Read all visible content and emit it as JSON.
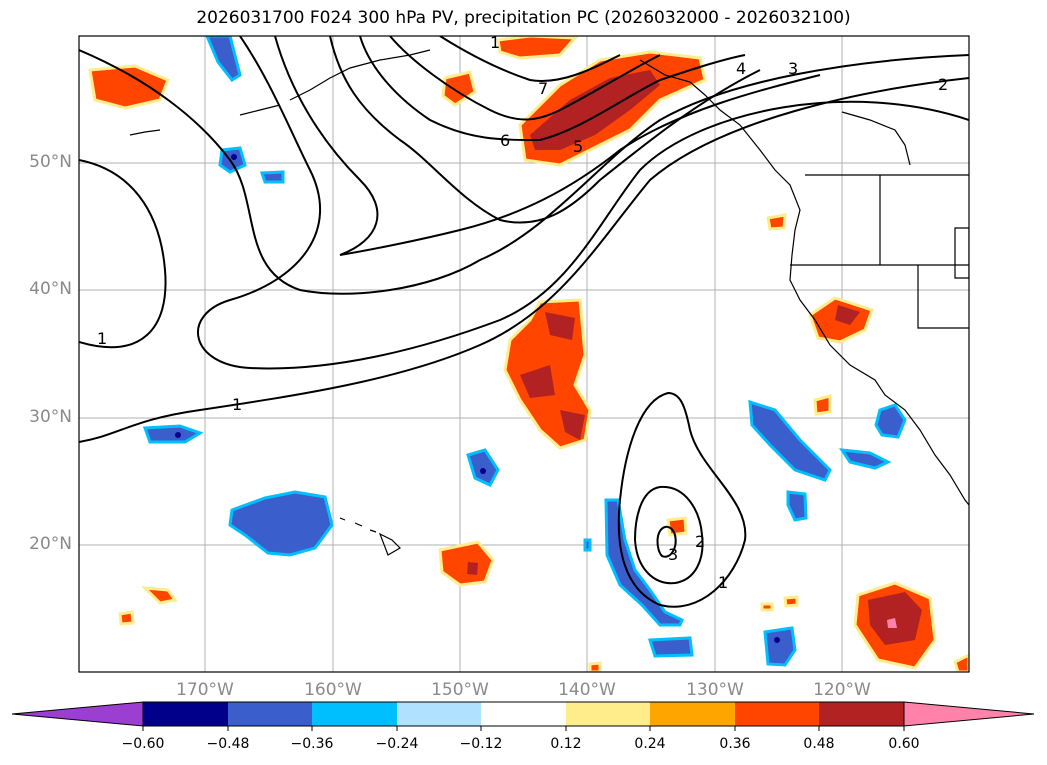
{
  "title": "2026031700 F024 300 hPa PV, precipitation PC (2026032000 - 2026032100)",
  "lat_labels": [
    "50°N",
    "40°N",
    "30°N",
    "20°N"
  ],
  "lon_labels": [
    "170°W",
    "160°W",
    "150°W",
    "140°W",
    "130°W",
    "120°W"
  ],
  "contour_labels": [
    "1",
    "1",
    "1",
    "2",
    "3",
    "4",
    "5",
    "6",
    "7",
    "3",
    "2",
    "1"
  ],
  "colorbar": {
    "ticks": [
      "−0.60",
      "−0.48",
      "−0.36",
      "−0.24",
      "−0.12",
      "0.12",
      "0.24",
      "0.36",
      "0.48",
      "0.60"
    ],
    "colors": [
      "#9b3fd3",
      "#00008b",
      "#3a5fcd",
      "#00bfff",
      "#b0e2ff",
      "#ffffff",
      "#ffec8b",
      "#ffa500",
      "#ff4500",
      "#b22222",
      "#ff82ab"
    ]
  }
}
